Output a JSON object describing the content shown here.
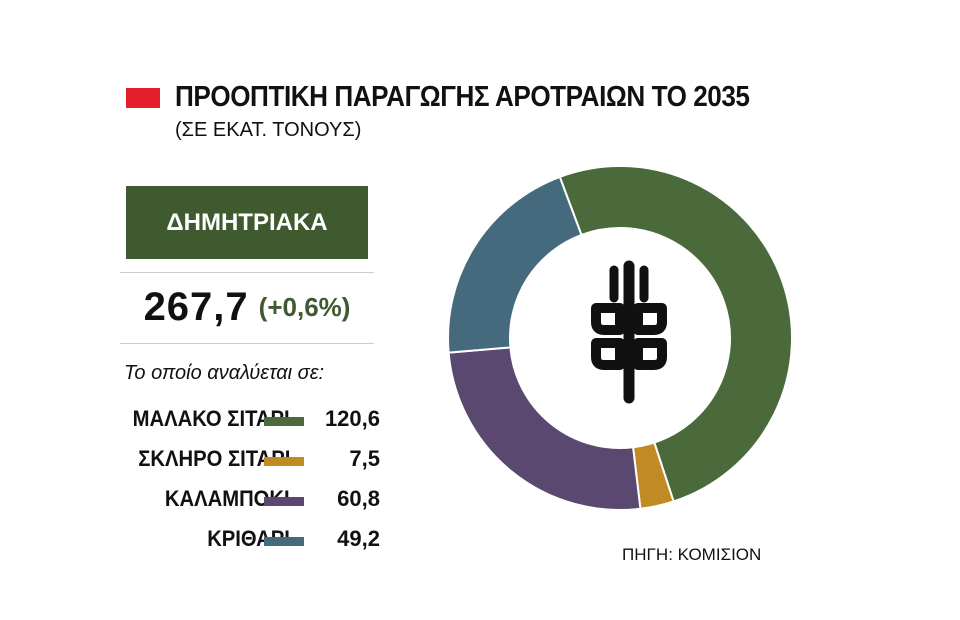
{
  "title": "ΠΡΟΟΠΤΙΚΗ ΠΑΡΑΓΩΓΗΣ ΑΡΟΤΡΑΙΩΝ ΤΟ 2035",
  "subtitle": "(ΣΕ ΕΚΑΤ. ΤΟΝΟΥΣ)",
  "category": "ΔΗΜΗΤΡΙΑΚΑ",
  "total": {
    "value": "267,7",
    "change": "(+0,6%)"
  },
  "breakdown_label": "Το οποίο αναλύεται σε:",
  "source": "ΠΗΓΗ: ΚΟΜΙΣΙΟΝ",
  "center_icon": "wheat-icon",
  "colors": {
    "accent_red": "#e3202a",
    "category_box": "#3e5a2e",
    "change_text": "#3e5a2e",
    "icon": "#111111"
  },
  "chart_data": {
    "type": "pie",
    "donut": true,
    "categories": [
      "ΜΑΛΑΚΟ ΣΙΤΑΡΙ",
      "ΣΚΛΗΡΟ ΣΙΤΑΡΙ",
      "ΚΑΛΑΜΠΟΚΙ",
      "ΚΡΙΘΑΡΙ"
    ],
    "values": [
      120.6,
      7.5,
      60.8,
      49.2
    ],
    "labels": [
      "120,6",
      "7,5",
      "60,8",
      "49,2"
    ],
    "colors": [
      "#4a6a3c",
      "#c08a25",
      "#5a4870",
      "#456a7e"
    ]
  }
}
